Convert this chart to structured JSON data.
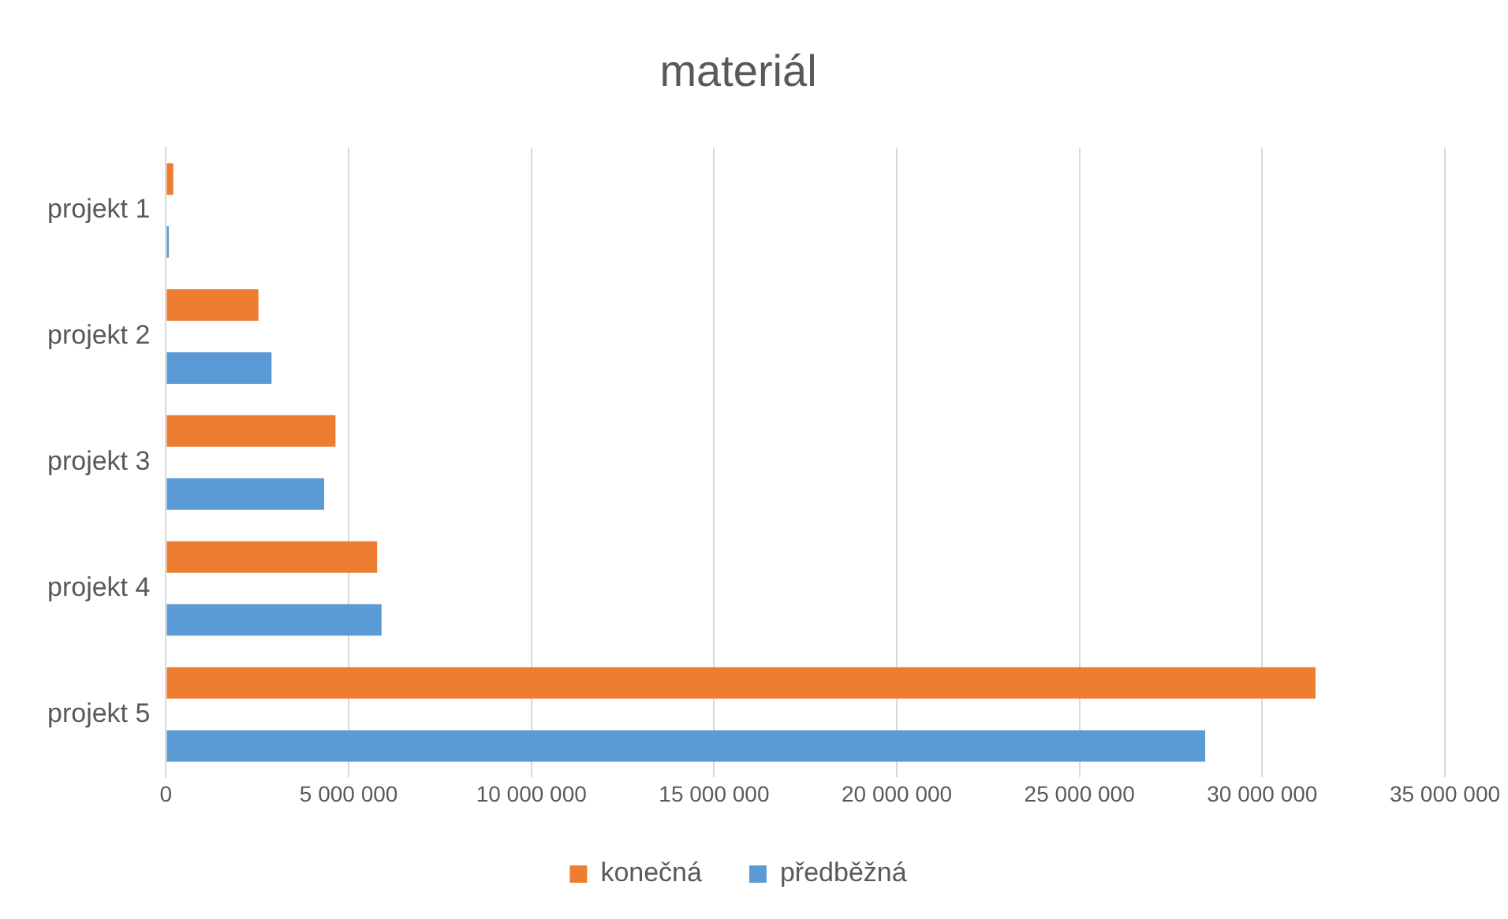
{
  "chart_data": {
    "type": "bar",
    "orientation": "horizontal",
    "title": "materiál",
    "categories": [
      "projekt 1",
      "projekt 2",
      "projekt 3",
      "projekt 4",
      "projekt 5"
    ],
    "series": [
      {
        "name": "konečná",
        "color": "#ed7d31",
        "values": [
          200000,
          2530000,
          4640000,
          5780000,
          31460000
        ]
      },
      {
        "name": "předběžná",
        "color": "#5b9bd5",
        "values": [
          80000,
          2890000,
          4330000,
          5900000,
          28440000
        ]
      }
    ],
    "xlim": [
      0,
      35000000
    ],
    "xticks": [
      0,
      {
        "value": 5000000,
        "label": "5 000 000"
      },
      {
        "value": 10000000,
        "label": "10 000 000"
      },
      {
        "value": 15000000,
        "label": "15 000 000"
      },
      {
        "value": 20000000,
        "label": "20 000 000"
      },
      {
        "value": 25000000,
        "label": "25 000 000"
      },
      {
        "value": 30000000,
        "label": "30 000 000"
      },
      {
        "value": 35000000,
        "label": "35 000 000"
      }
    ],
    "grid": "x",
    "legend": "bottom"
  }
}
